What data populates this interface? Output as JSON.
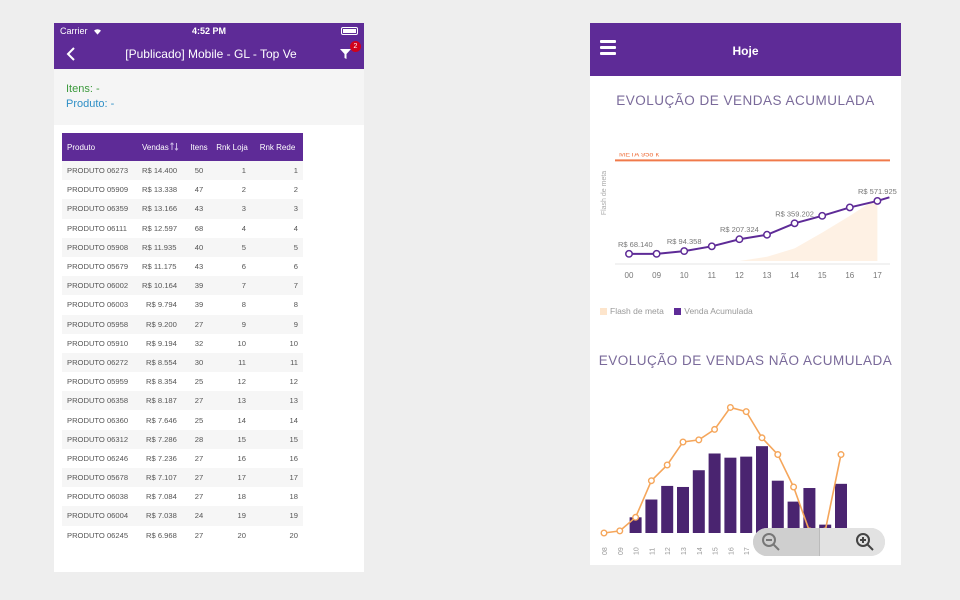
{
  "left_screen": {
    "status": {
      "carrier": "Carrier",
      "time": "4:52 PM"
    },
    "nav": {
      "title": "[Publicado] Mobile - GL - Top Ve",
      "filter_badge": "2"
    },
    "filters": {
      "itens_label": "Itens:",
      "itens_value": "-",
      "produto_label": "Produto:",
      "produto_value": "-"
    },
    "table": {
      "headers": {
        "produto": "Produto",
        "vendas": "Vendas",
        "itens": "Itens",
        "rnk_loja": "Rnk Loja",
        "rnk_rede": "Rnk Rede"
      },
      "rows": [
        {
          "produto": "PRODUTO 06273",
          "vendas": "R$ 14.400",
          "itens": "50",
          "rnk_loja": "1",
          "rnk_rede": "1"
        },
        {
          "produto": "PRODUTO 05909",
          "vendas": "R$ 13.338",
          "itens": "47",
          "rnk_loja": "2",
          "rnk_rede": "2"
        },
        {
          "produto": "PRODUTO 06359",
          "vendas": "R$ 13.166",
          "itens": "43",
          "rnk_loja": "3",
          "rnk_rede": "3"
        },
        {
          "produto": "PRODUTO 06111",
          "vendas": "R$ 12.597",
          "itens": "68",
          "rnk_loja": "4",
          "rnk_rede": "4"
        },
        {
          "produto": "PRODUTO 05908",
          "vendas": "R$ 11.935",
          "itens": "40",
          "rnk_loja": "5",
          "rnk_rede": "5"
        },
        {
          "produto": "PRODUTO 05679",
          "vendas": "R$ 11.175",
          "itens": "43",
          "rnk_loja": "6",
          "rnk_rede": "6"
        },
        {
          "produto": "PRODUTO 06002",
          "vendas": "R$ 10.164",
          "itens": "39",
          "rnk_loja": "7",
          "rnk_rede": "7"
        },
        {
          "produto": "PRODUTO 06003",
          "vendas": "R$ 9.794",
          "itens": "39",
          "rnk_loja": "8",
          "rnk_rede": "8"
        },
        {
          "produto": "PRODUTO 05958",
          "vendas": "R$ 9.200",
          "itens": "27",
          "rnk_loja": "9",
          "rnk_rede": "9"
        },
        {
          "produto": "PRODUTO 05910",
          "vendas": "R$ 9.194",
          "itens": "32",
          "rnk_loja": "10",
          "rnk_rede": "10"
        },
        {
          "produto": "PRODUTO 06272",
          "vendas": "R$ 8.554",
          "itens": "30",
          "rnk_loja": "11",
          "rnk_rede": "11"
        },
        {
          "produto": "PRODUTO 05959",
          "vendas": "R$ 8.354",
          "itens": "25",
          "rnk_loja": "12",
          "rnk_rede": "12"
        },
        {
          "produto": "PRODUTO 06358",
          "vendas": "R$ 8.187",
          "itens": "27",
          "rnk_loja": "13",
          "rnk_rede": "13"
        },
        {
          "produto": "PRODUTO 06360",
          "vendas": "R$ 7.646",
          "itens": "25",
          "rnk_loja": "14",
          "rnk_rede": "14"
        },
        {
          "produto": "PRODUTO 06312",
          "vendas": "R$ 7.286",
          "itens": "28",
          "rnk_loja": "15",
          "rnk_rede": "15"
        },
        {
          "produto": "PRODUTO 06246",
          "vendas": "R$ 7.236",
          "itens": "27",
          "rnk_loja": "16",
          "rnk_rede": "16"
        },
        {
          "produto": "PRODUTO 05678",
          "vendas": "R$ 7.107",
          "itens": "27",
          "rnk_loja": "17",
          "rnk_rede": "17"
        },
        {
          "produto": "PRODUTO 06038",
          "vendas": "R$ 7.084",
          "itens": "27",
          "rnk_loja": "18",
          "rnk_rede": "18"
        },
        {
          "produto": "PRODUTO 06004",
          "vendas": "R$ 7.038",
          "itens": "24",
          "rnk_loja": "19",
          "rnk_rede": "19"
        },
        {
          "produto": "PRODUTO 06245",
          "vendas": "R$ 6.968",
          "itens": "27",
          "rnk_loja": "20",
          "rnk_rede": "20"
        }
      ]
    }
  },
  "right_screen": {
    "header": {
      "title": "Hoje"
    },
    "colors": {
      "purple": "#5e2b97",
      "orange": "#f5a65b",
      "meta_line": "#f07a4a",
      "fill": "#fdebd9"
    },
    "legend": {
      "flash": "Flash de meta",
      "venda": "Venda Acumulada"
    }
  },
  "chart_data": [
    {
      "type": "line",
      "title": "EVOLUÇÃO DE VENDAS ACUMULADA",
      "ylabel": "Flash de meta",
      "categories": [
        "00",
        "09",
        "10",
        "11",
        "12",
        "13",
        "14",
        "15",
        "16",
        "17"
      ],
      "meta": {
        "label": "META 958 k",
        "value": 958000
      },
      "ylim": [
        0,
        1000000
      ],
      "series": [
        {
          "name": "Venda Acumulada",
          "type": "line",
          "values": [
            68140,
            68140,
            94358,
            140000,
            207324,
            250000,
            359202,
            430000,
            510000,
            571925
          ]
        },
        {
          "name": "Flash de meta",
          "type": "area",
          "values": [
            0,
            0,
            0,
            0,
            0,
            40000,
            120000,
            270000,
            430000,
            600000
          ]
        }
      ],
      "data_labels": [
        {
          "index": 0,
          "text": "R$ 68.140"
        },
        {
          "index": 2,
          "text": "R$ 94.358"
        },
        {
          "index": 4,
          "text": "R$ 207.324"
        },
        {
          "index": 6,
          "text": "R$ 359.202"
        },
        {
          "index": 9,
          "text": "R$ 571.925"
        }
      ],
      "legend": "bottom-left"
    },
    {
      "type": "bar",
      "title": "EVOLUÇÃO DE VENDAS NÃO ACUMULADA",
      "categories": [
        "08",
        "09",
        "10",
        "11",
        "12",
        "13",
        "14",
        "15",
        "16",
        "17",
        "18",
        "19",
        "20",
        "21",
        "22",
        "23"
      ],
      "series": [
        {
          "name": "",
          "type": "bar",
          "values": [
            0,
            0,
            15,
            32,
            45,
            44,
            60,
            76,
            72,
            73,
            83,
            50,
            30,
            43,
            8,
            47
          ]
        },
        {
          "name": "",
          "type": "line",
          "values": [
            0,
            2,
            15,
            50,
            65,
            87,
            89,
            99,
            120,
            116,
            91,
            75,
            44,
            2,
            2,
            75
          ]
        }
      ],
      "ylim": [
        0,
        130
      ]
    }
  ]
}
